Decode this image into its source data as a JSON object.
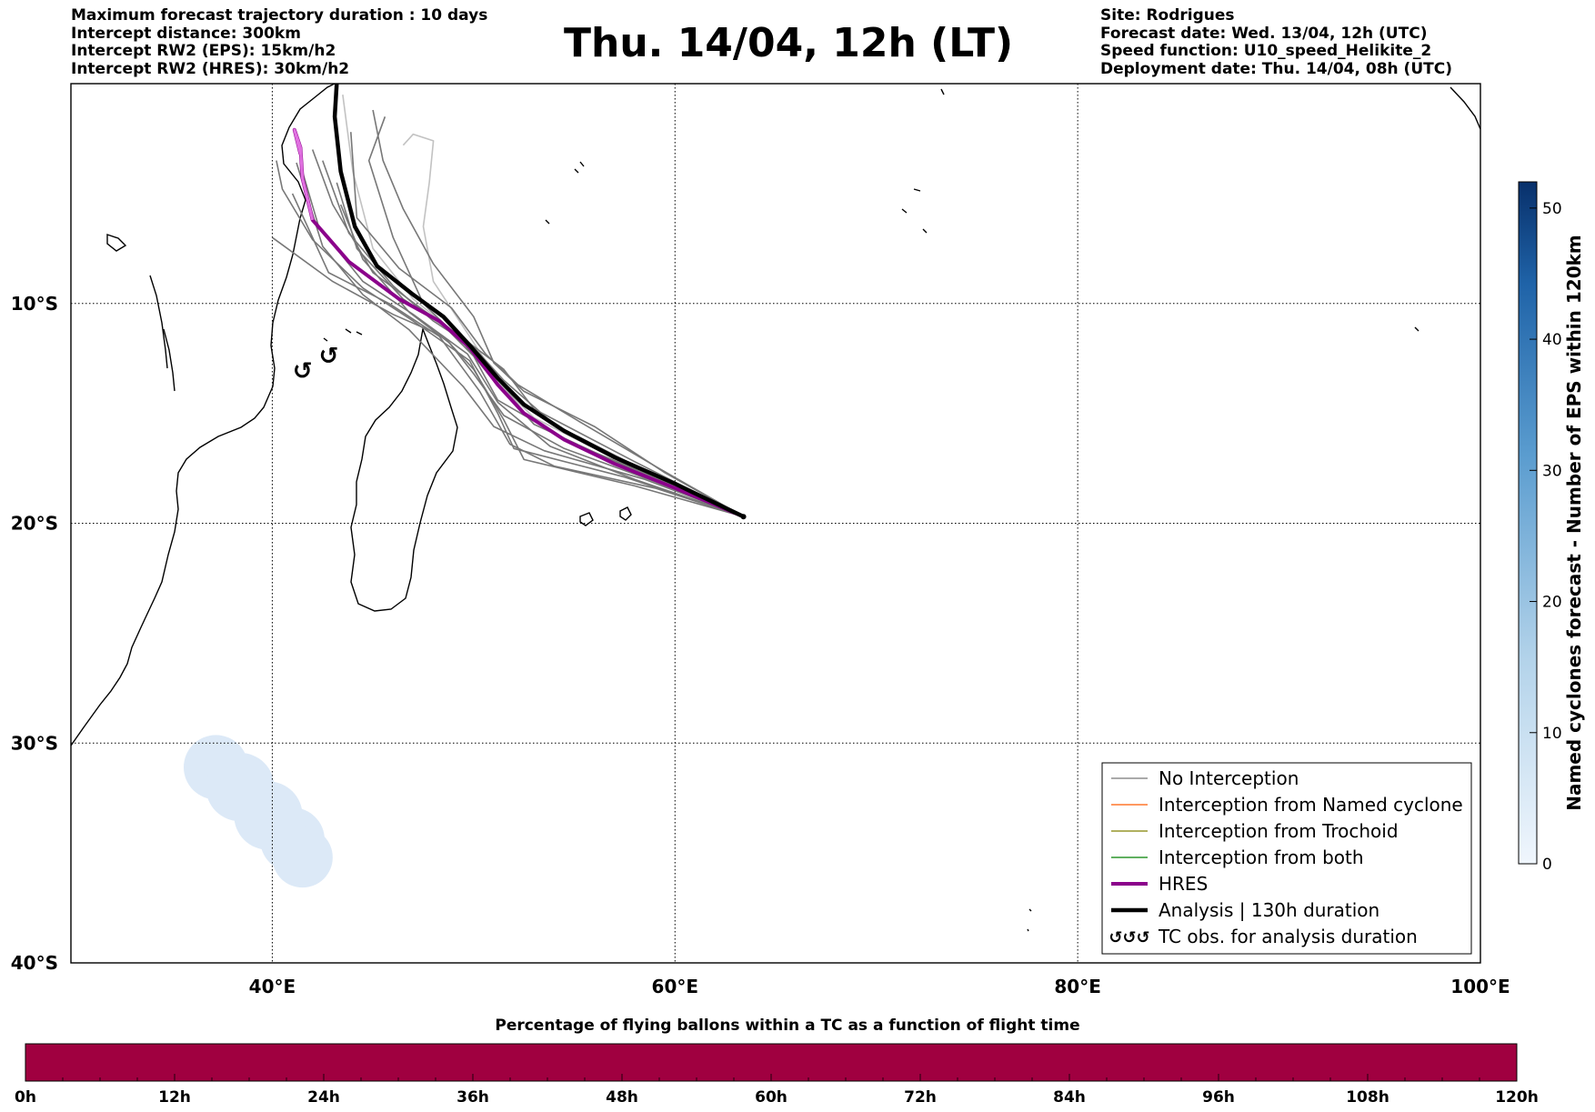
{
  "header": {
    "left": [
      "Maximum forecast trajectory duration : 10 days",
      "Intercept distance: 300km",
      "Intercept RW2 (EPS):  15km/h2",
      "Intercept RW2 (HRES): 30km/h2"
    ],
    "title": "Thu. 14/04, 12h (LT)",
    "right": [
      "Site: Rodrigues",
      "Forecast date: Wed. 13/04, 12h (UTC)",
      "Speed function: U10_speed_Helikite_2",
      "Deployment date: Thu. 14/04, 08h (UTC)"
    ]
  },
  "colors": {
    "no_interception": "#777777",
    "named_cyclone": "#ff5a00",
    "trochoid": "#808000",
    "both": "#008000",
    "hres": "#8b008b",
    "analysis": "#000000",
    "timeline_bar": "#a00040",
    "density": "#dce9f7"
  },
  "chart_data": {
    "type": "map",
    "projection": "plate-carree",
    "xlim": [
      30,
      100
    ],
    "ylim": [
      -40,
      0
    ],
    "x_ticks": [
      {
        "value": 40,
        "label": "40°E"
      },
      {
        "value": 60,
        "label": "60°E"
      },
      {
        "value": 80,
        "label": "80°E"
      },
      {
        "value": 100,
        "label": "100°E"
      }
    ],
    "y_ticks": [
      {
        "value": -10,
        "label": "10°S"
      },
      {
        "value": -20,
        "label": "20°S"
      },
      {
        "value": -30,
        "label": "30°S"
      },
      {
        "value": -40,
        "label": "40°S"
      }
    ],
    "grid": true,
    "launch_site": {
      "name": "Rodrigues",
      "lon": 63.4,
      "lat": -19.7
    },
    "series": [
      {
        "name": "Analysis | 130h duration",
        "lon": [
          63.4,
          60.0,
          57.0,
          54.5,
          52.5,
          51.2,
          49.8,
          48.5,
          47.0,
          45.2,
          44.1,
          43.4,
          43.1,
          43.2
        ],
        "lat": [
          -19.7,
          -18.2,
          -17.0,
          -15.8,
          -14.6,
          -13.4,
          -11.9,
          -10.6,
          -9.6,
          -8.3,
          -6.5,
          -4.0,
          -1.5,
          0.0
        ]
      },
      {
        "name": "HRES",
        "lon": [
          63.4,
          60.0,
          57.0,
          54.5,
          52.5,
          51.2,
          49.8,
          48.3,
          46.3,
          43.8,
          42.0,
          41.5,
          41.4,
          41.1,
          41.4
        ],
        "lat": [
          -19.7,
          -18.4,
          -17.3,
          -16.2,
          -15.0,
          -13.7,
          -12.0,
          -10.8,
          -9.8,
          -8.1,
          -6.2,
          -4.3,
          -2.9,
          -2.1,
          -3.2
        ]
      }
    ],
    "ensemble_members": [
      {
        "lon": [
          63.4,
          58.0,
          53.0,
          51.5,
          49.5,
          47.5,
          45.0,
          43.0,
          42.0
        ],
        "lat": [
          -19.7,
          -17.2,
          -14.8,
          -13.0,
          -11.6,
          -10.3,
          -8.6,
          -5.5,
          -3.0
        ]
      },
      {
        "lon": [
          63.4,
          58.5,
          54.0,
          51.5,
          50.0,
          48.0,
          46.0,
          43.8,
          42.5
        ],
        "lat": [
          -19.7,
          -17.6,
          -15.5,
          -13.5,
          -12.0,
          -10.8,
          -9.2,
          -6.8,
          -3.5
        ]
      },
      {
        "lon": [
          63.4,
          57.5,
          53.0,
          51.0,
          49.3,
          47.0,
          45.0,
          44.0,
          43.5
        ],
        "lat": [
          -19.7,
          -17.3,
          -15.2,
          -13.4,
          -11.5,
          -9.8,
          -7.5,
          -4.0,
          -0.5
        ]
      },
      {
        "lon": [
          63.4,
          59.0,
          55.0,
          51.2,
          50.0,
          48.5,
          46.5,
          44.2,
          43.2
        ],
        "lat": [
          -19.7,
          -17.9,
          -16.4,
          -14.4,
          -12.4,
          -11.0,
          -9.8,
          -7.5,
          -4.5
        ]
      },
      {
        "lon": [
          63.4,
          58.5,
          53.5,
          51.0,
          49.5,
          46.8,
          44.5,
          42.5,
          41.2
        ],
        "lat": [
          -19.7,
          -18.0,
          -16.7,
          -15.6,
          -13.8,
          -11.2,
          -9.6,
          -7.4,
          -3.6
        ]
      },
      {
        "lon": [
          63.4,
          59.0,
          54.0,
          51.8,
          50.3,
          48.3,
          45.8,
          42.8,
          41.0
        ],
        "lat": [
          -19.7,
          -18.4,
          -17.4,
          -16.4,
          -14.0,
          -11.5,
          -10.0,
          -8.6,
          -5.0
        ]
      },
      {
        "lon": [
          63.4,
          58.0,
          52.5,
          51.5,
          50.0,
          48.5,
          46.0,
          43.0,
          40.0
        ],
        "lat": [
          -19.7,
          -18.3,
          -17.1,
          -15.3,
          -13.0,
          -11.5,
          -10.5,
          -9.0,
          -7.0
        ]
      },
      {
        "lon": [
          63.4,
          57.5,
          52.0,
          51.2,
          49.8,
          47.0,
          44.5,
          42.0,
          40.5,
          40.2
        ],
        "lat": [
          -19.7,
          -17.9,
          -16.6,
          -15.0,
          -12.6,
          -10.8,
          -9.3,
          -7.1,
          -4.8,
          -3.5
        ]
      },
      {
        "lon": [
          63.4,
          59.5,
          56.0,
          52.5,
          51.0,
          50.0,
          48.0,
          46.5,
          45.5,
          45.0
        ],
        "lat": [
          -19.7,
          -17.7,
          -15.6,
          -14.0,
          -12.7,
          -10.6,
          -8.2,
          -5.7,
          -3.5,
          -1.2
        ]
      },
      {
        "lon": [
          63.4,
          58.0,
          53.0,
          51.0,
          49.8,
          48.0,
          47.5,
          47.8,
          48.0,
          47.0,
          46.5
        ],
        "lat": [
          -19.7,
          -17.6,
          -15.5,
          -13.2,
          -11.5,
          -9.0,
          -6.5,
          -4.5,
          -2.6,
          -2.3,
          -2.8
        ]
      },
      {
        "lon": [
          63.4,
          57.0,
          53.0,
          50.8,
          49.5,
          47.5,
          46.0,
          44.8,
          45.6
        ],
        "lat": [
          -19.7,
          -17.2,
          -15.5,
          -13.3,
          -11.8,
          -10.0,
          -7.0,
          -3.5,
          -1.5
        ]
      },
      {
        "lon": [
          63.4,
          59.0,
          54.5,
          51.5,
          50.0,
          48.8,
          46.8,
          44.5,
          43.4
        ],
        "lat": [
          -19.7,
          -18.1,
          -16.6,
          -15.1,
          -13.2,
          -11.8,
          -10.4,
          -8.0,
          -5.5
        ]
      },
      {
        "lon": [
          63.4,
          58.0,
          53.8,
          51.2,
          49.7,
          47.0,
          44.5,
          42.3,
          41.5
        ],
        "lat": [
          -19.7,
          -18.0,
          -16.5,
          -14.5,
          -12.3,
          -10.5,
          -9.0,
          -6.5,
          -4.0
        ]
      },
      {
        "lon": [
          63.4,
          59.2,
          55.3,
          52.2,
          50.6,
          48.9,
          46.3,
          44.2,
          43.9
        ],
        "lat": [
          -19.7,
          -17.5,
          -15.4,
          -13.7,
          -12.3,
          -10.2,
          -8.4,
          -6.1,
          -2.2
        ]
      }
    ],
    "tc_obs_markers": [
      {
        "lon": 41.5,
        "lat": -13.1
      },
      {
        "lon": 42.8,
        "lat": -12.4
      }
    ],
    "density_blobs": [
      {
        "lon": 37.2,
        "lat": -31.1,
        "radius_deg": 1.6
      },
      {
        "lon": 38.4,
        "lat": -32.0,
        "radius_deg": 1.7
      },
      {
        "lon": 39.8,
        "lat": -33.3,
        "radius_deg": 1.7
      },
      {
        "lon": 41.0,
        "lat": -34.4,
        "radius_deg": 1.6
      },
      {
        "lon": 41.5,
        "lat": -35.2,
        "radius_deg": 1.5
      }
    ]
  },
  "legend": {
    "items": [
      "No Interception",
      "Interception from Named cyclone",
      "Interception from Trochoid",
      "Interception from both",
      "HRES",
      "Analysis | 130h duration",
      "TC obs. for analysis duration"
    ],
    "placement": "lower-right"
  },
  "colorbar": {
    "label": "Named cyclones forecast - Number of EPS within 120km",
    "range": [
      0,
      52
    ],
    "ticks": [
      "0",
      "10",
      "20",
      "30",
      "40",
      "50"
    ],
    "tick_values": [
      0,
      10,
      20,
      30,
      40,
      50
    ]
  },
  "timeline": {
    "title": "Percentage of flying ballons within a TC as a function of flight time",
    "ticks": [
      "0h",
      "12h",
      "24h",
      "36h",
      "48h",
      "60h",
      "72h",
      "84h",
      "96h",
      "108h",
      "120h"
    ],
    "tick_values": [
      0,
      12,
      24,
      36,
      48,
      60,
      72,
      84,
      96,
      108,
      120
    ],
    "range": [
      0,
      120
    ]
  }
}
